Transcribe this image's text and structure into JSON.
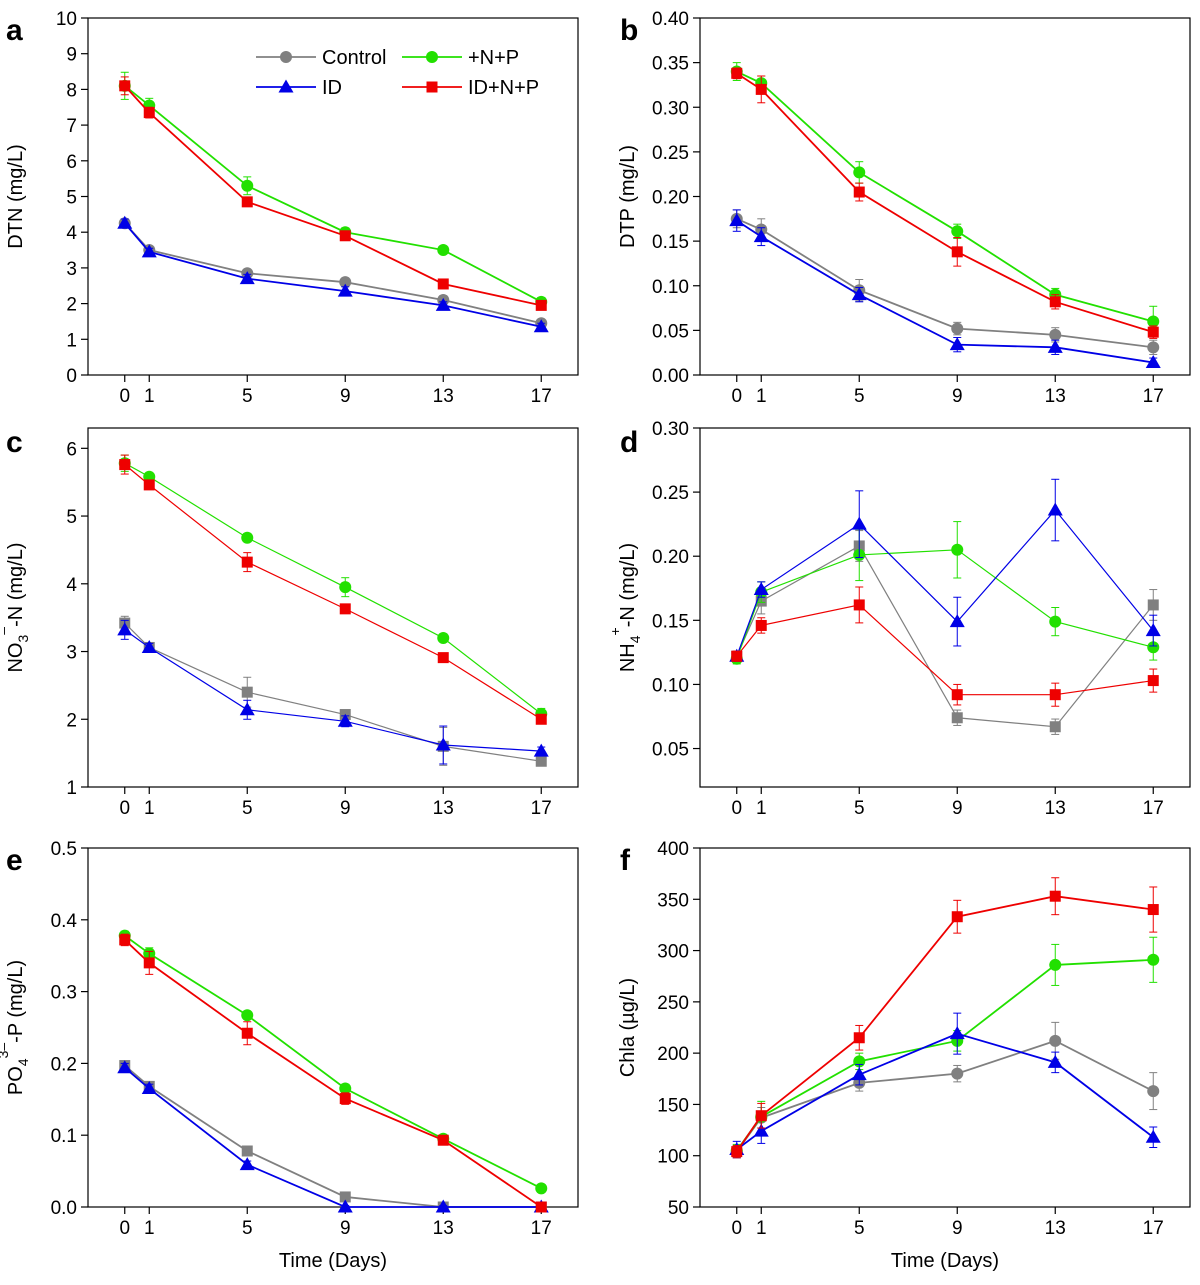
{
  "colors": {
    "Control": "#808080",
    "+N+P": "#22e000",
    "ID": "#0000e6",
    "ID+N+P": "#ee0000"
  },
  "chart_data": [
    {
      "id": "a",
      "type": "line",
      "panel_label": "a",
      "xlabel": "",
      "ylabel": "DTN (mg/L)",
      "ylabel_parts": [
        {
          "t": "DTN (mg/L)",
          "s": ""
        }
      ],
      "x": [
        0,
        1,
        5,
        9,
        13,
        17
      ],
      "xlim": [
        -1.5,
        18.5
      ],
      "ylim": [
        0,
        10
      ],
      "yticks": [
        0,
        1,
        2,
        3,
        4,
        5,
        6,
        7,
        8,
        9,
        10
      ],
      "ytick_labels": [
        "0",
        "1",
        "2",
        "3",
        "4",
        "5",
        "6",
        "7",
        "8",
        "9",
        "10"
      ],
      "legend": true,
      "series": [
        {
          "name": "Control",
          "marker": "circle",
          "values": [
            4.25,
            3.5,
            2.85,
            2.6,
            2.1,
            1.45
          ],
          "errors": [
            0.12,
            0.1,
            0.1,
            0.1,
            0.12,
            0.1
          ]
        },
        {
          "name": "+N+P",
          "marker": "circle",
          "values": [
            8.1,
            7.55,
            5.3,
            4.0,
            3.5,
            2.05
          ],
          "errors": [
            0.38,
            0.2,
            0.25,
            0.12,
            0.1,
            0.12
          ]
        },
        {
          "name": "ID",
          "marker": "triangle",
          "values": [
            4.25,
            3.45,
            2.7,
            2.35,
            1.95,
            1.35
          ],
          "errors": [
            0.12,
            0.1,
            0.12,
            0.12,
            0.1,
            0.1
          ]
        },
        {
          "name": "ID+N+P",
          "marker": "square",
          "values": [
            8.1,
            7.35,
            4.85,
            3.9,
            2.55,
            1.95
          ],
          "errors": [
            0.25,
            0.15,
            0.12,
            0.12,
            0.1,
            0.1
          ]
        }
      ]
    },
    {
      "id": "b",
      "type": "line",
      "panel_label": "b",
      "xlabel": "",
      "ylabel": "DTP (mg/L)",
      "ylabel_parts": [
        {
          "t": "DTP (mg/L)",
          "s": ""
        }
      ],
      "x": [
        0,
        1,
        5,
        9,
        13,
        17
      ],
      "xlim": [
        -1.5,
        18.5
      ],
      "ylim": [
        0,
        0.4
      ],
      "yticks": [
        0,
        0.05,
        0.1,
        0.15,
        0.2,
        0.25,
        0.3,
        0.35,
        0.4
      ],
      "ytick_labels": [
        "0.00",
        "0.05",
        "0.10",
        "0.15",
        "0.20",
        "0.25",
        "0.30",
        "0.35",
        "0.40"
      ],
      "legend": false,
      "series": [
        {
          "name": "Control",
          "marker": "circle",
          "values": [
            0.175,
            0.163,
            0.095,
            0.052,
            0.045,
            0.031
          ],
          "errors": [
            0.01,
            0.012,
            0.012,
            0.007,
            0.008,
            0.008
          ]
        },
        {
          "name": "+N+P",
          "marker": "circle",
          "values": [
            0.34,
            0.327,
            0.227,
            0.161,
            0.09,
            0.06
          ],
          "errors": [
            0.01,
            0.008,
            0.012,
            0.008,
            0.007,
            0.017
          ]
        },
        {
          "name": "ID",
          "marker": "triangle",
          "values": [
            0.173,
            0.155,
            0.09,
            0.034,
            0.031,
            0.014
          ],
          "errors": [
            0.012,
            0.01,
            0.008,
            0.008,
            0.008,
            0.005
          ]
        },
        {
          "name": "ID+N+P",
          "marker": "square",
          "values": [
            0.338,
            0.32,
            0.205,
            0.138,
            0.082,
            0.048
          ],
          "errors": [
            0.006,
            0.015,
            0.01,
            0.016,
            0.008,
            0.007
          ]
        }
      ]
    },
    {
      "id": "c",
      "type": "line",
      "panel_label": "c",
      "xlabel": "",
      "ylabel": "NO3–-N (mg/L)",
      "ylabel_parts": [
        {
          "t": "NO",
          "s": ""
        },
        {
          "t": "3",
          "s": "sub"
        },
        {
          "t": "–",
          "s": "sup"
        },
        {
          "t": "-N (mg/L)",
          "s": ""
        }
      ],
      "x": [
        0,
        1,
        5,
        9,
        13,
        17
      ],
      "xlim": [
        -1.5,
        18.5
      ],
      "ylim": [
        1,
        6.3
      ],
      "yticks": [
        1,
        2,
        3,
        4,
        5,
        6
      ],
      "ytick_labels": [
        "1",
        "2",
        "3",
        "4",
        "5",
        "6"
      ],
      "legend": false,
      "series": [
        {
          "name": "Control",
          "marker": "square",
          "values": [
            3.42,
            3.06,
            2.4,
            2.07,
            1.6,
            1.38
          ],
          "errors": [
            0.1,
            0.05,
            0.22,
            0.06,
            0.28,
            0.05
          ]
        },
        {
          "name": "+N+P",
          "marker": "circle",
          "values": [
            5.78,
            5.58,
            4.68,
            3.95,
            3.2,
            2.08
          ],
          "errors": [
            0.12,
            0.05,
            0.06,
            0.14,
            0.06,
            0.08
          ]
        },
        {
          "name": "ID",
          "marker": "triangle",
          "values": [
            3.32,
            3.06,
            2.14,
            1.97,
            1.62,
            1.53
          ],
          "errors": [
            0.14,
            0.06,
            0.14,
            0.08,
            0.28,
            0.06
          ]
        },
        {
          "name": "ID+N+P",
          "marker": "square",
          "values": [
            5.76,
            5.46,
            4.32,
            3.63,
            2.91,
            2.0
          ],
          "errors": [
            0.14,
            0.06,
            0.14,
            0.06,
            0.06,
            0.05
          ]
        }
      ]
    },
    {
      "id": "d",
      "type": "line",
      "panel_label": "d",
      "xlabel": "",
      "ylabel": "NH4+-N (mg/L)",
      "ylabel_parts": [
        {
          "t": "NH",
          "s": ""
        },
        {
          "t": "4",
          "s": "sub"
        },
        {
          "t": "+",
          "s": "sup"
        },
        {
          "t": "-N (mg/L)",
          "s": ""
        }
      ],
      "x": [
        0,
        1,
        5,
        9,
        13,
        17
      ],
      "xlim": [
        -1.5,
        18.5
      ],
      "ylim": [
        0.02,
        0.3
      ],
      "yticks": [
        0.05,
        0.1,
        0.15,
        0.2,
        0.25,
        0.3
      ],
      "ytick_labels": [
        "0.05",
        "0.10",
        "0.15",
        "0.20",
        "0.25",
        "0.30"
      ],
      "legend": false,
      "series": [
        {
          "name": "Control",
          "marker": "square",
          "values": [
            0.122,
            0.165,
            0.208,
            0.074,
            0.067,
            0.162
          ],
          "errors": [
            0.004,
            0.01,
            0.012,
            0.006,
            0.006,
            0.012
          ]
        },
        {
          "name": "+N+P",
          "marker": "circle",
          "values": [
            0.12,
            0.172,
            0.201,
            0.205,
            0.149,
            0.129
          ],
          "errors": [
            0.004,
            0.008,
            0.02,
            0.022,
            0.011,
            0.01
          ]
        },
        {
          "name": "ID",
          "marker": "triangle",
          "values": [
            0.122,
            0.174,
            0.225,
            0.149,
            0.236,
            0.142
          ],
          "errors": [
            0.004,
            0.006,
            0.026,
            0.019,
            0.024,
            0.012
          ]
        },
        {
          "name": "ID+N+P",
          "marker": "square",
          "values": [
            0.122,
            0.146,
            0.162,
            0.092,
            0.092,
            0.103
          ],
          "errors": [
            0.004,
            0.006,
            0.014,
            0.008,
            0.009,
            0.009
          ]
        }
      ]
    },
    {
      "id": "e",
      "type": "line",
      "panel_label": "e",
      "xlabel": "Time (Days)",
      "ylabel": "PO43–-P (mg/L)",
      "ylabel_parts": [
        {
          "t": "PO",
          "s": ""
        },
        {
          "t": "4",
          "s": "sub"
        },
        {
          "t": "3–",
          "s": "sup"
        },
        {
          "t": "-P (mg/L)",
          "s": ""
        }
      ],
      "x": [
        0,
        1,
        5,
        9,
        13,
        17
      ],
      "xlim": [
        -1.5,
        18.5
      ],
      "ylim": [
        0,
        0.5
      ],
      "yticks": [
        0,
        0.1,
        0.2,
        0.3,
        0.4,
        0.5
      ],
      "ytick_labels": [
        "0.0",
        "0.1",
        "0.2",
        "0.3",
        "0.4",
        "0.5"
      ],
      "legend": false,
      "series": [
        {
          "name": "Control",
          "marker": "square",
          "values": [
            0.197,
            0.168,
            0.078,
            0.014,
            0.0,
            0.0
          ],
          "errors": [
            0.006,
            0.006,
            0.005,
            0.004,
            0.002,
            0.002
          ]
        },
        {
          "name": "+N+P",
          "marker": "circle",
          "values": [
            0.378,
            0.353,
            0.267,
            0.165,
            0.095,
            0.026
          ],
          "errors": [
            0.006,
            0.008,
            0.005,
            0.006,
            0.004,
            0.004
          ]
        },
        {
          "name": "ID",
          "marker": "triangle",
          "values": [
            0.194,
            0.165,
            0.059,
            0.0,
            0.0,
            0.0
          ],
          "errors": [
            0.006,
            0.006,
            0.005,
            0.002,
            0.002,
            0.002
          ]
        },
        {
          "name": "ID+N+P",
          "marker": "square",
          "values": [
            0.372,
            0.34,
            0.242,
            0.151,
            0.093,
            0.0
          ],
          "errors": [
            0.008,
            0.016,
            0.016,
            0.008,
            0.004,
            0.002
          ]
        }
      ]
    },
    {
      "id": "f",
      "type": "line",
      "panel_label": "f",
      "xlabel": "Time (Days)",
      "ylabel": "Chla (µg/L)",
      "ylabel_parts": [
        {
          "t": "Chla (µg/L)",
          "s": ""
        }
      ],
      "x": [
        0,
        1,
        5,
        9,
        13,
        17
      ],
      "xlim": [
        -1.5,
        18.5
      ],
      "ylim": [
        50,
        400
      ],
      "yticks": [
        50,
        100,
        150,
        200,
        250,
        300,
        350,
        400
      ],
      "ytick_labels": [
        "50",
        "100",
        "150",
        "200",
        "250",
        "300",
        "350",
        "400"
      ],
      "legend": false,
      "series": [
        {
          "name": "Control",
          "marker": "circle",
          "values": [
            104,
            137,
            171,
            180,
            212,
            163
          ],
          "errors": [
            6,
            10,
            8,
            8,
            18,
            18
          ]
        },
        {
          "name": "+N+P",
          "marker": "circle",
          "values": [
            105,
            138,
            192,
            212,
            286,
            291
          ],
          "errors": [
            6,
            15,
            8,
            10,
            20,
            22
          ]
        },
        {
          "name": "ID",
          "marker": "triangle",
          "values": [
            106,
            124,
            179,
            219,
            191,
            118
          ],
          "errors": [
            8,
            12,
            10,
            20,
            10,
            10
          ]
        },
        {
          "name": "ID+N+P",
          "marker": "square",
          "values": [
            104,
            139,
            215,
            333,
            353,
            340
          ],
          "errors": [
            6,
            12,
            12,
            16,
            18,
            22
          ]
        }
      ]
    }
  ],
  "xtick_labels": [
    "0",
    "1",
    "5",
    "9",
    "13",
    "17"
  ],
  "legend_entries": [
    "Control",
    "+N+P",
    "ID",
    "ID+N+P"
  ]
}
